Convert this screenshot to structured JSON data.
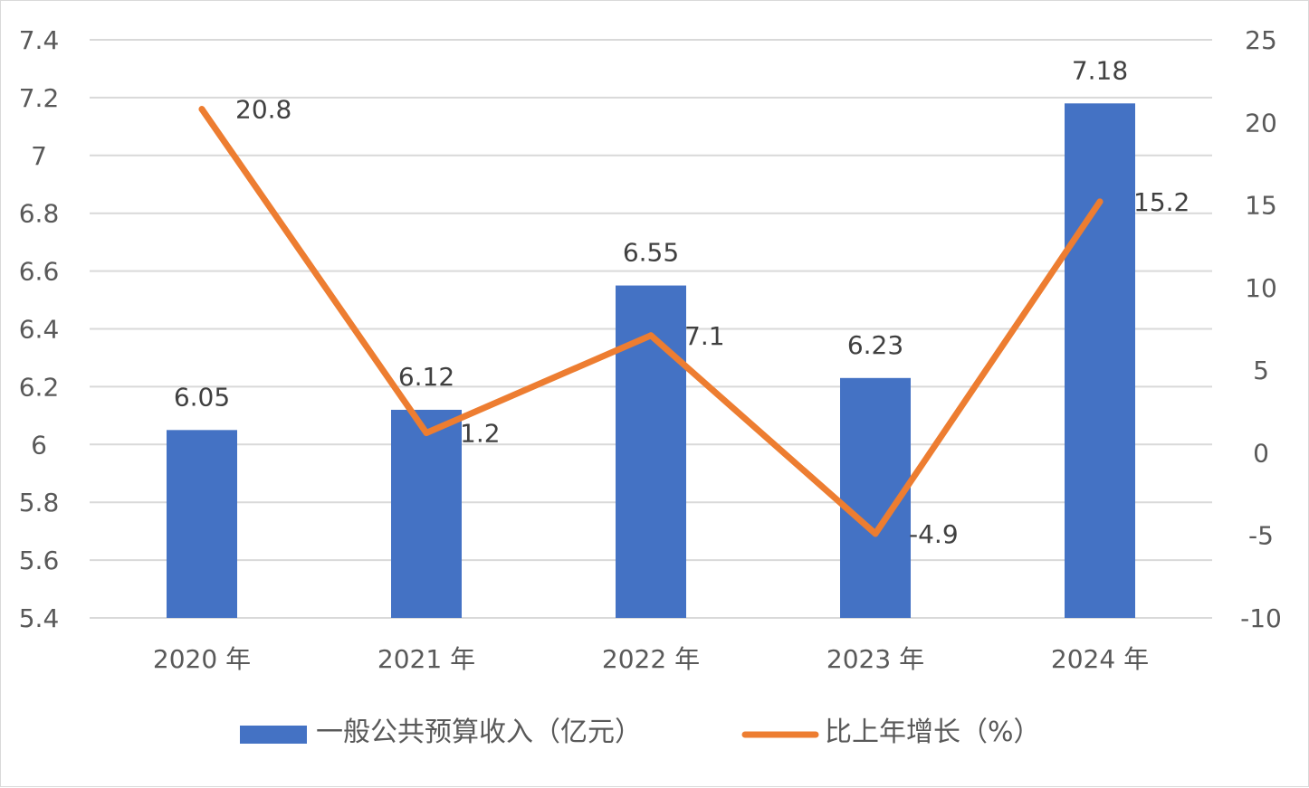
{
  "chart_data": {
    "type": "bar",
    "categories": [
      "2020 年",
      "2021 年",
      "2022 年",
      "2023 年",
      "2024 年"
    ],
    "series": [
      {
        "name": "一般公共预算收入（亿元）",
        "type": "bar",
        "axis": "left",
        "color": "#4472C4",
        "values": [
          6.05,
          6.12,
          6.55,
          6.23,
          7.18
        ],
        "labels": [
          "6.05",
          "6.12",
          "6.55",
          "6.23",
          "7.18"
        ]
      },
      {
        "name": "比上年增长（%）",
        "type": "line",
        "axis": "right",
        "color": "#ED7D31",
        "values": [
          20.8,
          1.2,
          7.1,
          -4.9,
          15.2
        ],
        "labels": [
          "20.8",
          "1.2",
          "7.1",
          "-4.9",
          "15.2"
        ]
      }
    ],
    "y_left": {
      "ylim": [
        5.4,
        7.4
      ],
      "ticks": [
        5.4,
        5.6,
        5.8,
        6.0,
        6.2,
        6.4,
        6.6,
        6.8,
        7.0,
        7.2,
        7.4
      ],
      "tick_labels": [
        "5.4",
        "5.6",
        "5.8",
        "6",
        "6.2",
        "6.4",
        "6.6",
        "6.8",
        "7",
        "7.2",
        "7.4"
      ]
    },
    "y_right": {
      "ylim": [
        -10,
        25
      ],
      "ticks": [
        -10,
        -5,
        0,
        5,
        10,
        15,
        20,
        25
      ],
      "tick_labels": [
        "-10",
        "-5",
        "0",
        "5",
        "10",
        "15",
        "20",
        "25"
      ]
    },
    "grid": true,
    "legend_position": "bottom",
    "gridline_color": "#D9D9D9"
  }
}
